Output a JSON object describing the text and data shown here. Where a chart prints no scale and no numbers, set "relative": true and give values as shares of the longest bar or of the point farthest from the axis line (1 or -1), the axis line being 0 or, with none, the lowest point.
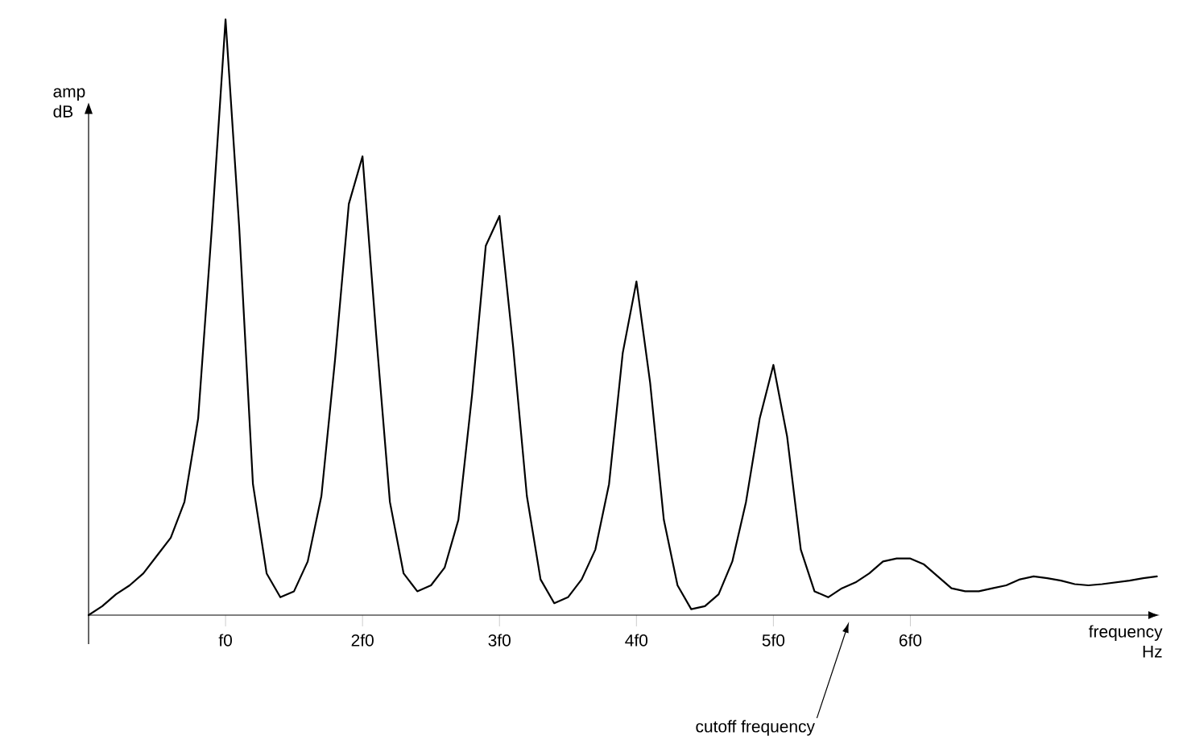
{
  "chart_data": {
    "type": "line",
    "relative": true,
    "xlabel": "frequency Hz",
    "ylabel": "amp dB",
    "categories": [
      null,
      null,
      null,
      null,
      null,
      null,
      null,
      null,
      null,
      null,
      "f0",
      null,
      null,
      null,
      null,
      null,
      null,
      null,
      null,
      null,
      "2f0",
      null,
      null,
      null,
      null,
      null,
      null,
      null,
      null,
      null,
      "3f0",
      null,
      null,
      null,
      null,
      null,
      null,
      null,
      null,
      null,
      "4f0",
      null,
      null,
      null,
      null,
      null,
      null,
      null,
      null,
      null,
      "5f0",
      null,
      null,
      null,
      null,
      null,
      null,
      null,
      null,
      null,
      "6f0",
      null,
      null,
      null,
      null,
      null,
      null,
      null,
      null,
      null,
      null,
      null,
      null,
      null,
      null,
      null,
      null,
      null,
      null
    ],
    "annotations": [
      "cutoff frequency"
    ],
    "series": [
      {
        "color": "#000000",
        "values": [
          0,
          0.015,
          0.035,
          0.05,
          0.07,
          0.1,
          0.13,
          0.19,
          0.33,
          0.65,
          1.0,
          0.65,
          0.22,
          0.07,
          0.03,
          0.04,
          0.09,
          0.2,
          0.43,
          0.69,
          0.77,
          0.47,
          0.19,
          0.07,
          0.04,
          0.05,
          0.08,
          0.16,
          0.37,
          0.62,
          0.67,
          0.45,
          0.2,
          0.06,
          0.02,
          0.03,
          0.06,
          0.11,
          0.22,
          0.44,
          0.56,
          0.39,
          0.16,
          0.05,
          0.01,
          0.015,
          0.035,
          0.09,
          0.19,
          0.33,
          0.42,
          0.3,
          0.11,
          0.04,
          0.03,
          0.045,
          0.055,
          0.07,
          0.09,
          0.095,
          0.095,
          0.085,
          0.065,
          0.045,
          0.04,
          0.04,
          0.045,
          0.05,
          0.06,
          0.065,
          0.062,
          0.058,
          0.052,
          0.05,
          0.052,
          0.055,
          0.058,
          0.062,
          0.065
        ]
      }
    ]
  }
}
